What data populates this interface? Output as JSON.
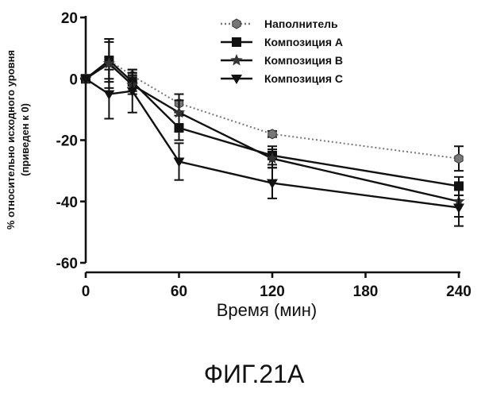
{
  "chart_data": {
    "type": "line",
    "title": "",
    "xlabel": "Время (мин)",
    "ylabel_lines": [
      "% относительно исходного уровня",
      "(приведен к 0)"
    ],
    "x": [
      0,
      15,
      30,
      60,
      120,
      240
    ],
    "x_ticks": [
      0,
      60,
      120,
      180,
      240
    ],
    "y_ticks": [
      20,
      0,
      -20,
      -40,
      -60
    ],
    "xlim": [
      0,
      240
    ],
    "ylim": [
      -60,
      20
    ],
    "legend_position": "top-right",
    "error_bars": true,
    "series": [
      {
        "name": "Наполнитель",
        "marker": "hexagon",
        "line": "dotted",
        "values": [
          0,
          6,
          1,
          -8,
          -18,
          -26
        ],
        "errors": [
          0,
          7,
          2,
          3,
          1,
          4
        ]
      },
      {
        "name": "Композиция A",
        "marker": "square",
        "line": "solid",
        "values": [
          0,
          6,
          -1,
          -16,
          -25,
          -35
        ],
        "errors": [
          0,
          6,
          3,
          4,
          3,
          3
        ]
      },
      {
        "name": "Композиция B",
        "marker": "star",
        "line": "solid",
        "values": [
          0,
          5,
          -2,
          -11,
          -26,
          -40
        ],
        "errors": [
          0,
          8,
          3,
          4,
          3,
          5
        ]
      },
      {
        "name": "Композиция C",
        "marker": "triangle-down",
        "line": "solid",
        "values": [
          0,
          -5,
          -4,
          -27,
          -34,
          -42
        ],
        "errors": [
          0,
          8,
          7,
          6,
          5,
          6
        ]
      }
    ]
  },
  "figure_caption": "ФИГ.21А"
}
